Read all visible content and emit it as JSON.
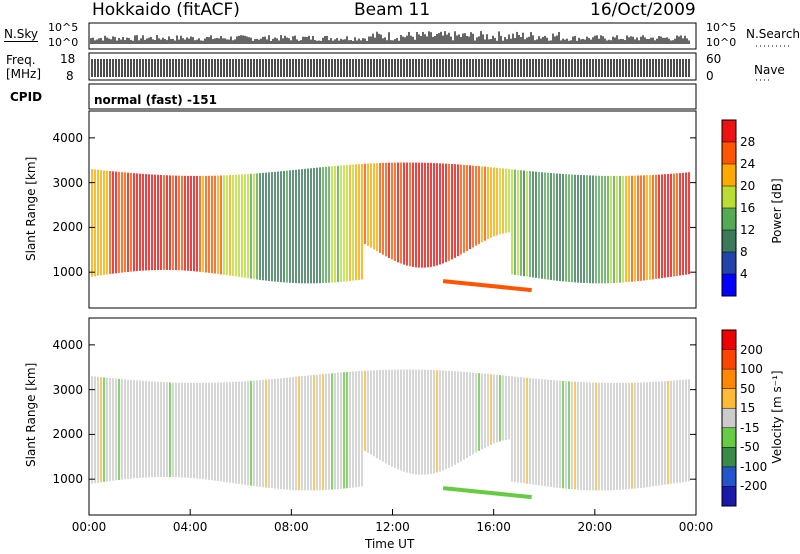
{
  "header": {
    "site_title": "Hokkaido (fitACF)",
    "beam": "Beam 11",
    "date": "16/Oct/2009"
  },
  "noise_panel": {
    "left_label": "N.Sky",
    "right_label": "N.Search",
    "left_ticks": [
      "10^5",
      "10^0"
    ],
    "right_ticks": [
      "10^5",
      "10^0"
    ]
  },
  "freq_panel": {
    "left_label_line1": "Freq.",
    "left_label_line2": "[MHz]",
    "left_ticks": [
      "18",
      "8"
    ],
    "right_label": "Nave",
    "right_ticks": [
      "60",
      "0"
    ]
  },
  "cpid": {
    "label": "CPID",
    "value": "normal (fast) -151"
  },
  "chart_data": [
    {
      "type": "heatmap",
      "title": "",
      "xlabel": "",
      "ylabel": "Slant Range [km]",
      "y_ticks": [
        "1000",
        "2000",
        "3000",
        "4000"
      ],
      "ylim": [
        200,
        4600
      ],
      "colorbar_label": "Power [dB]",
      "colorbar_ticks": [
        "4",
        "8",
        "12",
        "16",
        "20",
        "24",
        "28"
      ],
      "colorbar_colors": [
        "#0000ff",
        "#2244aa",
        "#3a7a5a",
        "#55aa55",
        "#bbdd33",
        "#ffaa00",
        "#ff5500",
        "#ee1111"
      ],
      "clim": [
        0,
        32
      ]
    },
    {
      "type": "heatmap",
      "title": "",
      "xlabel": "Time UT",
      "ylabel": "Slant Range [km]",
      "y_ticks": [
        "1000",
        "2000",
        "3000",
        "4000"
      ],
      "ylim": [
        200,
        4600
      ],
      "x_ticks": [
        "00:00",
        "04:00",
        "08:00",
        "12:00",
        "16:00",
        "20:00",
        "00:00"
      ],
      "xlim": [
        0,
        24
      ],
      "colorbar_label": "Velocity [m s⁻¹]",
      "colorbar_ticks": [
        "200",
        "100",
        "50",
        "15",
        "-15",
        "-50",
        "-100",
        "-200"
      ],
      "colorbar_colors": [
        "#1a1aaa",
        "#2255cc",
        "#3a8a4a",
        "#66cc44",
        "#cccccc",
        "#ffbb33",
        "#ff8800",
        "#ff4400",
        "#ee0000"
      ],
      "clim": [
        -250,
        250
      ]
    }
  ]
}
